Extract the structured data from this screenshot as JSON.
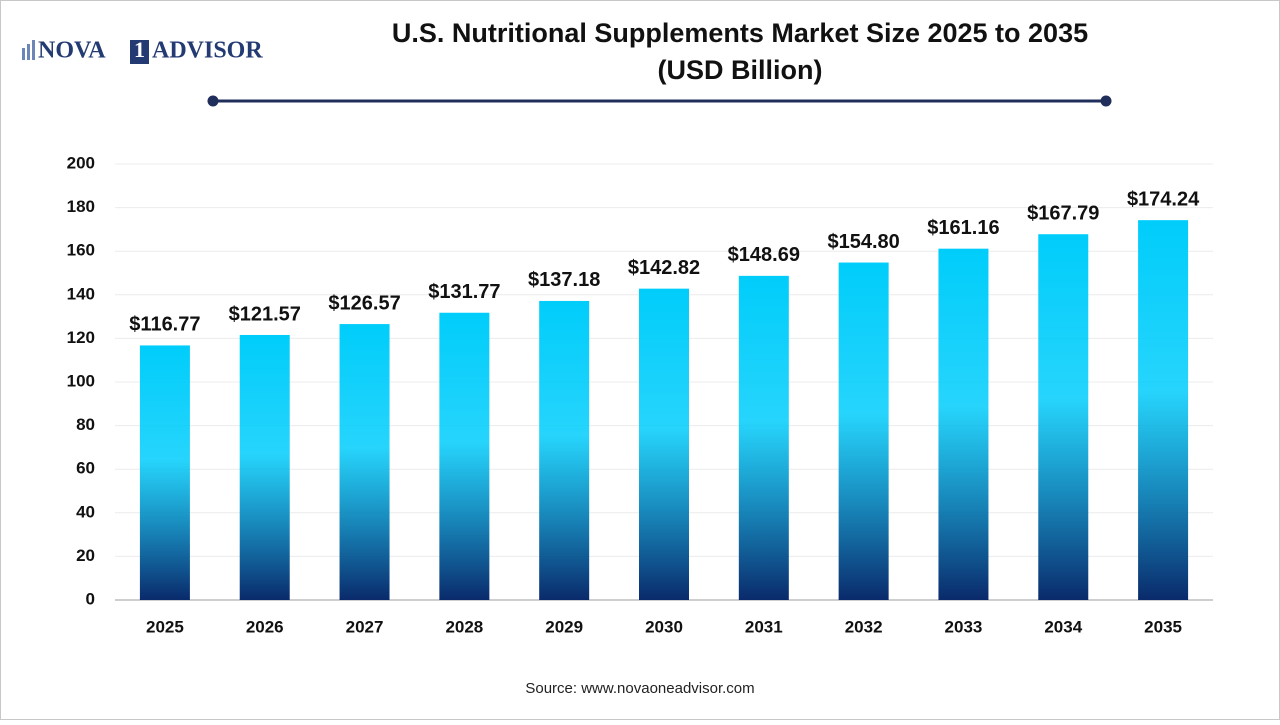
{
  "logo": {
    "left": "NOVA",
    "box": "1",
    "right": "ADVISOR"
  },
  "chart_data": {
    "type": "bar",
    "title": "U.S. Nutritional Supplements Market Size 2025 to 2035",
    "subtitle": "(USD Billion)",
    "categories": [
      "2025",
      "2026",
      "2027",
      "2028",
      "2029",
      "2030",
      "2031",
      "2032",
      "2033",
      "2034",
      "2035"
    ],
    "values": [
      116.77,
      121.57,
      126.57,
      131.77,
      137.18,
      142.82,
      148.69,
      154.8,
      161.16,
      167.79,
      174.24
    ],
    "value_labels": [
      "$116.77",
      "$121.57",
      "$126.57",
      "$131.77",
      "$137.18",
      "$142.82",
      "$148.69",
      "$154.80",
      "$161.16",
      "$167.79",
      "$174.24"
    ],
    "gradient": [
      "#00cdfb",
      "#0a2a6b"
    ],
    "ylim": [
      0,
      200
    ],
    "yticks": [
      0,
      20,
      40,
      60,
      80,
      100,
      120,
      140,
      160,
      180,
      200
    ],
    "grid": true,
    "source": "Source: www.novaoneadvisor.com"
  }
}
